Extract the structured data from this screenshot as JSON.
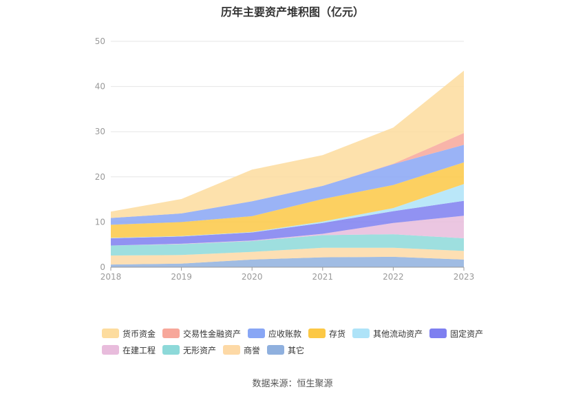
{
  "chart_data": {
    "type": "area",
    "stacked": true,
    "title": "历年主要资产堆积图（亿元）",
    "x": [
      "2018",
      "2019",
      "2020",
      "2021",
      "2022",
      "2023"
    ],
    "ylim": [
      0,
      50
    ],
    "yticks": [
      0,
      10,
      20,
      30,
      40,
      50
    ],
    "grid": true,
    "legend_position": "bottom",
    "series": [
      {
        "name": "其它",
        "color": "#8fb0de",
        "values": [
          0.6,
          0.8,
          1.7,
          2.2,
          2.3,
          1.7
        ]
      },
      {
        "name": "商誉",
        "color": "#fdd9a6",
        "values": [
          2.0,
          1.9,
          1.7,
          2.1,
          2.0,
          1.9
        ]
      },
      {
        "name": "无形资产",
        "color": "#8dd9d9",
        "values": [
          2.2,
          2.4,
          2.4,
          2.8,
          3.0,
          2.8
        ]
      },
      {
        "name": "在建工程",
        "color": "#e8bcdc",
        "values": [
          0.0,
          0.1,
          0.1,
          0.3,
          2.5,
          5.0
        ]
      },
      {
        "name": "固定资产",
        "color": "#7e7ff0",
        "values": [
          1.6,
          1.6,
          1.8,
          2.4,
          2.6,
          3.3
        ]
      },
      {
        "name": "其他流动资产",
        "color": "#aee3f8",
        "values": [
          0.1,
          0.1,
          0.1,
          0.3,
          0.7,
          3.7
        ]
      },
      {
        "name": "存货",
        "color": "#fcc845",
        "values": [
          2.9,
          3.1,
          3.5,
          5.0,
          5.1,
          4.8
        ]
      },
      {
        "name": "应收账款",
        "color": "#88a6f5",
        "values": [
          1.5,
          1.9,
          3.3,
          2.9,
          4.6,
          3.9
        ]
      },
      {
        "name": "交易性金融资产",
        "color": "#f7a79a",
        "values": [
          0.0,
          0.0,
          0.0,
          0.0,
          0.1,
          2.6
        ]
      },
      {
        "name": "货币资金",
        "color": "#fddc9e",
        "values": [
          1.4,
          3.2,
          7.0,
          6.8,
          8.0,
          13.8
        ]
      }
    ]
  },
  "legend": {
    "row1": [
      {
        "label": "货币资金",
        "color": "#fddc9e"
      },
      {
        "label": "交易性金融资产",
        "color": "#f7a79a"
      },
      {
        "label": "应收账款",
        "color": "#88a6f5"
      },
      {
        "label": "存货",
        "color": "#fcc845"
      },
      {
        "label": "其他流动资产",
        "color": "#aee3f8"
      },
      {
        "label": "固定资产",
        "color": "#7e7ff0"
      }
    ],
    "row2": [
      {
        "label": "在建工程",
        "color": "#e8bcdc"
      },
      {
        "label": "无形资产",
        "color": "#8dd9d9"
      },
      {
        "label": "商誉",
        "color": "#fdd9a6"
      },
      {
        "label": "其它",
        "color": "#8fb0de"
      }
    ]
  },
  "source_text": "数据来源：恒生聚源"
}
